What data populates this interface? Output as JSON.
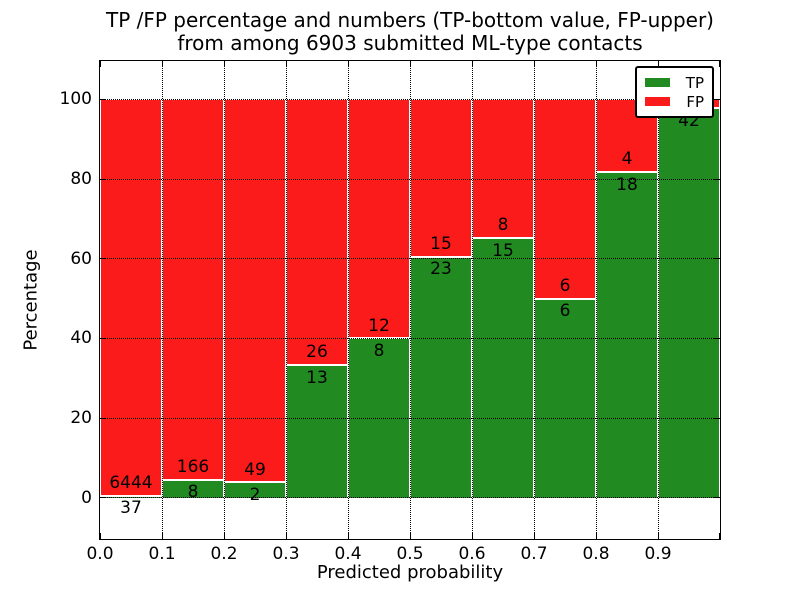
{
  "title": {
    "line1": "TP /FP percentage and numbers (TP-bottom value, FP-upper)",
    "line2": "from among 6903 submitted ML-type contacts"
  },
  "axes": {
    "xlabel": "Predicted probability",
    "ylabel": "Percentage",
    "xtick_labels": [
      "0.0",
      "0.1",
      "0.2",
      "0.3",
      "0.4",
      "0.5",
      "0.6",
      "0.7",
      "0.8",
      "0.9"
    ],
    "ytick_labels": [
      "0",
      "20",
      "40",
      "60",
      "80",
      "100"
    ],
    "ytick_values": [
      0,
      20,
      40,
      60,
      80,
      100
    ]
  },
  "legend": {
    "items": [
      {
        "label": "TP",
        "color": "#218a21"
      },
      {
        "label": "FP",
        "color": "#fb1b1b"
      }
    ]
  },
  "chart_data": {
    "type": "bar",
    "stacked": true,
    "title": "TP /FP percentage and numbers (TP-bottom value, FP-upper) from among 6903 submitted ML-type contacts",
    "xlabel": "Predicted probability",
    "ylabel": "Percentage",
    "total_contacts": 6903,
    "bin_starts": [
      0.0,
      0.1,
      0.2,
      0.3,
      0.4,
      0.5,
      0.6,
      0.7,
      0.8,
      0.9
    ],
    "bin_width": 0.1,
    "series": [
      {
        "name": "TP",
        "color": "#218a21",
        "counts": [
          37,
          8,
          2,
          13,
          8,
          23,
          15,
          6,
          18,
          42
        ]
      },
      {
        "name": "FP",
        "color": "#fb1b1b",
        "counts": [
          6444,
          166,
          49,
          26,
          12,
          15,
          8,
          6,
          4,
          null
        ]
      }
    ],
    "tp_pct": [
      0.57,
      4.6,
      3.92,
      33.33,
      40.0,
      60.53,
      65.22,
      50.0,
      81.82,
      97.7
    ],
    "tp_display_labels": [
      "37",
      "8",
      "2",
      "13",
      "8",
      "23",
      "15",
      "6",
      "18",
      "42"
    ],
    "fp_display_labels": [
      "6444",
      "166",
      "49",
      "26",
      "12",
      "15",
      "8",
      "6",
      "4",
      ""
    ],
    "bar_edge_color": "#ffffff",
    "ylim": [
      -10.3,
      109.6
    ],
    "xlim": [
      0.0,
      1.0
    ],
    "grid": true,
    "grid_style": "dotted",
    "legend_position": "upper right"
  }
}
